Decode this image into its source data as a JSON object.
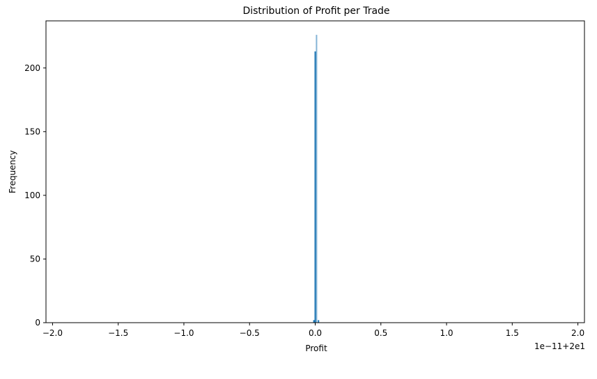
{
  "chart_data": {
    "type": "bar",
    "subtype": "histogram",
    "title": "Distribution of Profit per Trade",
    "xlabel": "Profit",
    "ylabel": "Frequency",
    "x_offset_label": "1e−11+2e1",
    "xlim": [
      -2.05,
      2.05
    ],
    "ylim": [
      0,
      237
    ],
    "x_ticks": [
      -2.0,
      -1.5,
      -1.0,
      -0.5,
      0.0,
      0.5,
      1.0,
      1.5,
      2.0
    ],
    "x_tick_labels": [
      "−2.0",
      "−1.5",
      "−1.0",
      "−0.5",
      "0.0",
      "0.5",
      "1.0",
      "1.5",
      "2.0"
    ],
    "y_ticks": [
      0,
      50,
      100,
      150,
      200
    ],
    "y_tick_labels": [
      "0",
      "50",
      "100",
      "150",
      "200"
    ],
    "grid": false,
    "legend": "none",
    "bar_color": "#1f77b4",
    "bins": [
      {
        "x": -0.01,
        "value": 2
      },
      {
        "x": 0.0,
        "value": 213
      },
      {
        "x": 0.01,
        "value": 226
      },
      {
        "x": 0.025,
        "value": 2
      }
    ]
  }
}
